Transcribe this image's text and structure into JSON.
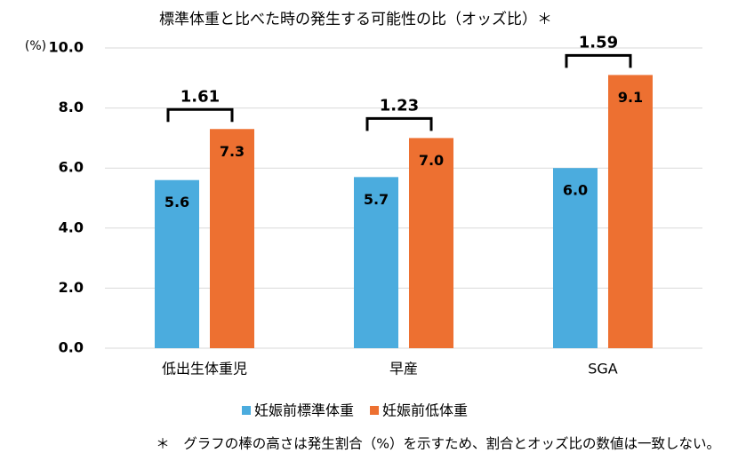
{
  "chart_data": {
    "type": "bar",
    "title": "標準体重と比べた時の発生する可能性の比（オッズ比）＊",
    "y_label": "(%)",
    "categories": [
      "低出生体重児",
      "早産",
      "SGA"
    ],
    "series": [
      {
        "name": "妊娠前標準体重",
        "color": "#4bacde",
        "values": [
          5.6,
          5.7,
          6.0
        ],
        "value_labels": [
          "5.6",
          "5.7",
          "6.0"
        ]
      },
      {
        "name": "妊娠前低体重",
        "color": "#ed7031",
        "values": [
          7.3,
          7.0,
          9.1
        ],
        "value_labels": [
          "7.3",
          "7.0",
          "9.1"
        ]
      }
    ],
    "odds_ratios": [
      1.61,
      1.23,
      1.59
    ],
    "ylim": [
      0,
      10
    ],
    "yticks": [
      {
        "value": 0,
        "label": "0.0"
      },
      {
        "value": 2,
        "label": "2.0"
      },
      {
        "value": 4,
        "label": "4.0"
      },
      {
        "value": 6,
        "label": "6.0"
      },
      {
        "value": 8,
        "label": "8.0"
      },
      {
        "value": 10,
        "label": "10.0"
      }
    ],
    "grid": true,
    "footnote": "＊　グラフの棒の高さは発生割合（%）を示すため、割合とオッズ比の数値は一致しない。"
  }
}
